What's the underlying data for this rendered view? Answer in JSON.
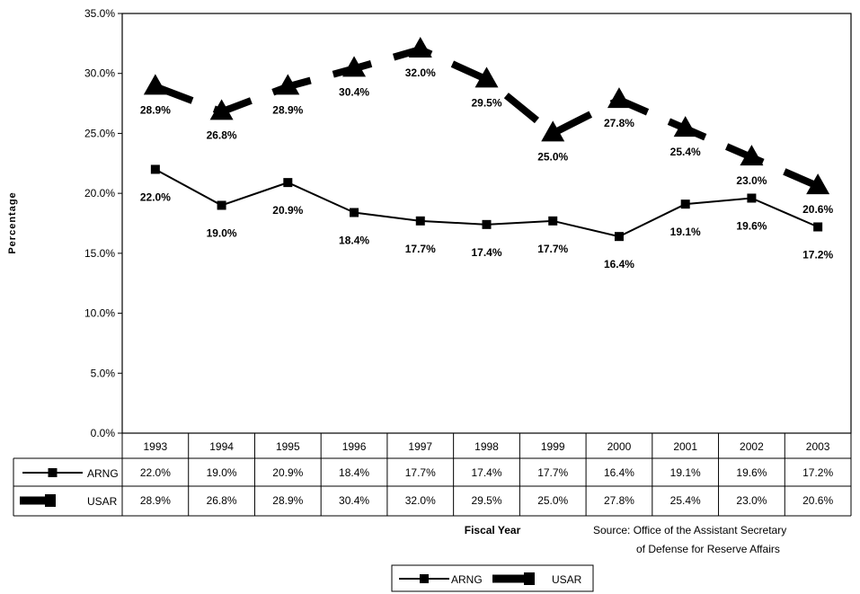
{
  "chart_data": {
    "type": "line",
    "ylabel": "Percentage",
    "xlabel": "Fiscal Year",
    "ylim": [
      0,
      35
    ],
    "y_ticks": [
      "0.0%",
      "5.0%",
      "10.0%",
      "15.0%",
      "20.0%",
      "25.0%",
      "30.0%",
      "35.0%"
    ],
    "categories": [
      "1993",
      "1994",
      "1995",
      "1996",
      "1997",
      "1998",
      "1999",
      "2000",
      "2001",
      "2002",
      "2003"
    ],
    "series": [
      {
        "name": "ARNG",
        "values": [
          22.0,
          19.0,
          20.9,
          18.4,
          17.7,
          17.4,
          17.7,
          16.4,
          19.1,
          19.6,
          17.2
        ],
        "labels": [
          "22.0%",
          "19.0%",
          "20.9%",
          "18.4%",
          "17.7%",
          "17.4%",
          "17.7%",
          "16.4%",
          "19.1%",
          "19.6%",
          "17.2%"
        ],
        "style": "solid-line-square-markers",
        "color": "#000000"
      },
      {
        "name": "USAR",
        "values": [
          28.9,
          26.8,
          28.9,
          30.4,
          32.0,
          29.5,
          25.0,
          27.8,
          25.4,
          23.0,
          20.6
        ],
        "labels": [
          "28.9%",
          "26.8%",
          "28.9%",
          "30.4%",
          "32.0%",
          "29.5%",
          "25.0%",
          "27.8%",
          "25.4%",
          "23.0%",
          "20.6%"
        ],
        "style": "thick-dashed-line-triangle-markers",
        "color": "#000000"
      }
    ],
    "grid": false,
    "legend": "bottom-center",
    "data_table": true,
    "source_line1": "Source: Office of the Assistant Secretary",
    "source_line2": "of Defense for Reserve Affairs"
  }
}
